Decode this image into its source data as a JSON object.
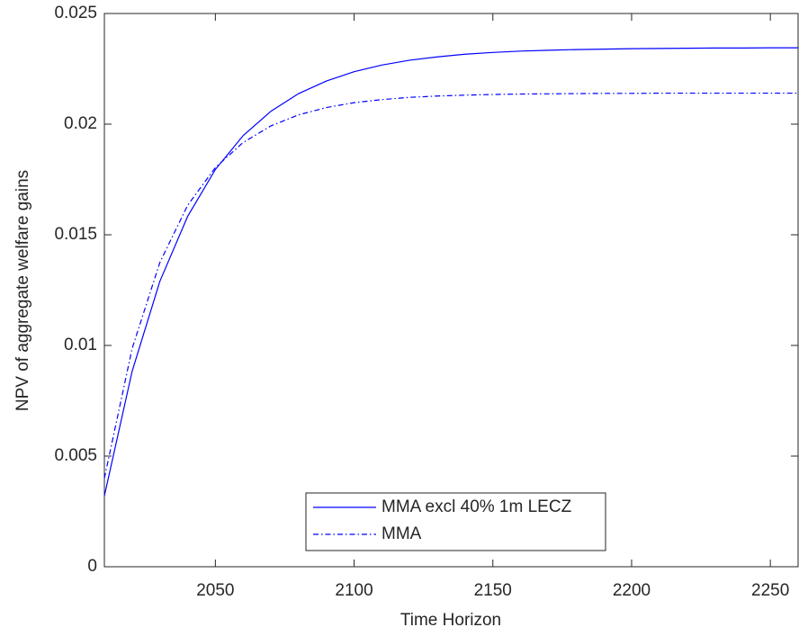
{
  "chart_data": {
    "type": "line",
    "xlabel": "Time Horizon",
    "ylabel": "NPV of aggregate welfare gains",
    "x": [
      2010,
      2020,
      2030,
      2040,
      2050,
      2060,
      2070,
      2080,
      2090,
      2100,
      2110,
      2120,
      2130,
      2140,
      2150,
      2160,
      2170,
      2180,
      2190,
      2200,
      2210,
      2220,
      2230,
      2240,
      2250,
      2260
    ],
    "series": [
      {
        "name": "MMA excl 40% 1m LECZ",
        "color": "#0000ff",
        "style": "solid",
        "values": [
          0.0032,
          0.00883,
          0.0129,
          0.01583,
          0.01795,
          0.01948,
          0.02058,
          0.02138,
          0.02195,
          0.02237,
          0.02267,
          0.02289,
          0.02304,
          0.02316,
          0.02324,
          0.0233,
          0.02334,
          0.02337,
          0.02339,
          0.02341,
          0.02342,
          0.02343,
          0.02344,
          0.02344,
          0.02345,
          0.02345
        ]
      },
      {
        "name": "MMA",
        "color": "#0000ff",
        "style": "dashdot",
        "values": [
          0.004,
          0.00986,
          0.01375,
          0.01633,
          0.01804,
          0.01917,
          0.01992,
          0.02042,
          0.02075,
          0.02097,
          0.02111,
          0.02121,
          0.02127,
          0.02131,
          0.02134,
          0.02136,
          0.02137,
          0.02138,
          0.02139,
          0.02139,
          0.0214,
          0.0214,
          0.0214,
          0.0214,
          0.0214,
          0.0214
        ]
      }
    ],
    "xlim": [
      2010,
      2260
    ],
    "xticks": [
      2050,
      2100,
      2150,
      2200,
      2250
    ],
    "ylim": [
      0,
      0.025
    ],
    "yticks": [
      0,
      0.005,
      0.01,
      0.015,
      0.02,
      0.025
    ],
    "grid": false,
    "legend": "bottom-center"
  }
}
